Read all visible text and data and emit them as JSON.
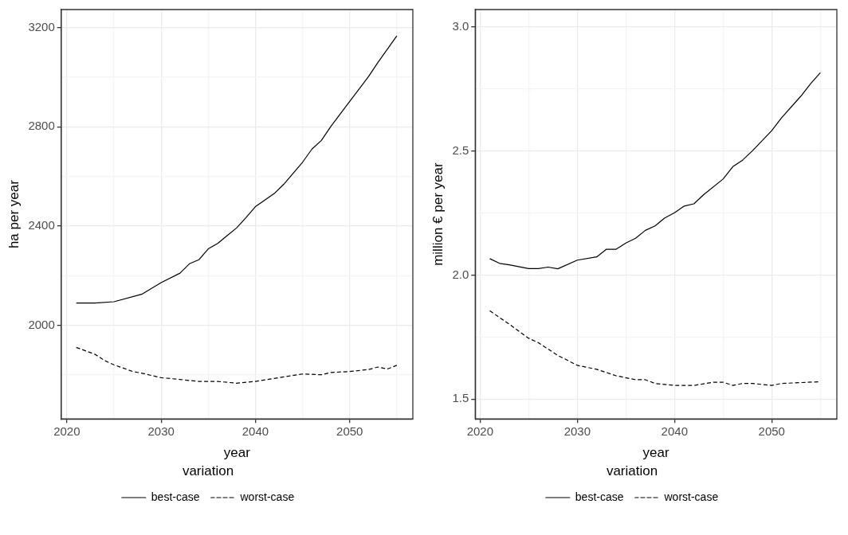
{
  "chart_data": [
    {
      "type": "line",
      "xlabel": "year",
      "ylabel": "ha per year",
      "legend_title": "variation",
      "legend": "bottom",
      "grid": true,
      "marker": "none",
      "xlim": [
        2019.4,
        2056.7
      ],
      "ylim": [
        1623,
        3272
      ],
      "xticks": [
        2020,
        {
          "value": 2025,
          "label": null
        },
        2030,
        {
          "value": 2035,
          "label": null
        },
        2040,
        {
          "value": 2045,
          "label": null
        },
        2050,
        {
          "value": 2055,
          "label": null
        }
      ],
      "yticks": [
        {
          "value": 1800,
          "label": null
        },
        2000,
        {
          "value": 2200,
          "label": null
        },
        2400,
        {
          "value": 2600,
          "label": null
        },
        2800,
        {
          "value": 3000,
          "label": null
        },
        3200
      ],
      "series": [
        {
          "name": "best-case",
          "color": "#000000",
          "line_style": "solid",
          "x": [
            2021,
            2023,
            2025,
            2028,
            2030,
            2032,
            2033,
            2034,
            2035,
            2036,
            2037,
            2038,
            2039,
            2040,
            2042,
            2043,
            2045,
            2046,
            2047,
            2048,
            2050,
            2051,
            2052,
            2053,
            2055
          ],
          "values": [
            2090,
            2090,
            2095,
            2126,
            2172,
            2210,
            2248,
            2264,
            2308,
            2330,
            2361,
            2392,
            2434,
            2478,
            2531,
            2568,
            2657,
            2710,
            2745,
            2801,
            2902,
            2952,
            3002,
            3059,
            3166
          ]
        },
        {
          "name": "worst-case",
          "color": "#000000",
          "line_style": "dashed",
          "x": [
            2021,
            2023,
            2024,
            2025,
            2027,
            2028,
            2030,
            2032,
            2034,
            2036,
            2038,
            2040,
            2042,
            2045,
            2047,
            2048,
            2050,
            2052,
            2053,
            2054,
            2055
          ],
          "values": [
            1911,
            1883,
            1858,
            1841,
            1814,
            1807,
            1789,
            1782,
            1774,
            1774,
            1767,
            1774,
            1786,
            1804,
            1801,
            1810,
            1814,
            1822,
            1832,
            1824,
            1839
          ]
        }
      ]
    },
    {
      "type": "line",
      "xlabel": "year",
      "ylabel": "million € per year",
      "legend_title": "variation",
      "legend": "bottom",
      "grid": true,
      "marker": "none",
      "xlim": [
        2019.5,
        2056.7
      ],
      "ylim": [
        1.42,
        3.07
      ],
      "xticks": [
        2020,
        {
          "value": 2025,
          "label": null
        },
        2030,
        {
          "value": 2035,
          "label": null
        },
        2040,
        {
          "value": 2045,
          "label": null
        },
        2050,
        {
          "value": 2055,
          "label": null
        }
      ],
      "yticks": [
        {
          "value": 1.5,
          "label": "1.5"
        },
        {
          "value": 1.75,
          "label": null
        },
        {
          "value": 2.0,
          "label": "2.0"
        },
        {
          "value": 2.25,
          "label": null
        },
        {
          "value": 2.5,
          "label": "2.5"
        },
        {
          "value": 2.75,
          "label": null
        },
        {
          "value": 3.0,
          "label": "3.0"
        }
      ],
      "series": [
        {
          "name": "best-case",
          "color": "#000000",
          "line_style": "solid",
          "x": [
            2021,
            2022,
            2023,
            2025,
            2026,
            2027,
            2028,
            2030,
            2032,
            2033,
            2034,
            2035,
            2036,
            2037,
            2038,
            2039,
            2040,
            2041,
            2042,
            2043,
            2045,
            2046,
            2047,
            2048,
            2050,
            2051,
            2053,
            2054,
            2055
          ],
          "values": [
            2.066,
            2.047,
            2.041,
            2.026,
            2.026,
            2.032,
            2.025,
            2.06,
            2.073,
            2.104,
            2.104,
            2.129,
            2.148,
            2.18,
            2.198,
            2.23,
            2.251,
            2.278,
            2.287,
            2.324,
            2.387,
            2.437,
            2.463,
            2.5,
            2.582,
            2.633,
            2.721,
            2.771,
            2.815
          ]
        },
        {
          "name": "worst-case",
          "color": "#000000",
          "line_style": "dashed",
          "x": [
            2021,
            2023,
            2025,
            2026,
            2028,
            2030,
            2032,
            2034,
            2036,
            2037,
            2038,
            2040,
            2042,
            2044,
            2045,
            2046,
            2047,
            2048,
            2050,
            2051,
            2055
          ],
          "values": [
            1.856,
            1.802,
            1.745,
            1.727,
            1.676,
            1.636,
            1.62,
            1.594,
            1.578,
            1.578,
            1.563,
            1.555,
            1.555,
            1.568,
            1.568,
            1.555,
            1.563,
            1.563,
            1.555,
            1.563,
            1.57
          ]
        }
      ]
    }
  ]
}
